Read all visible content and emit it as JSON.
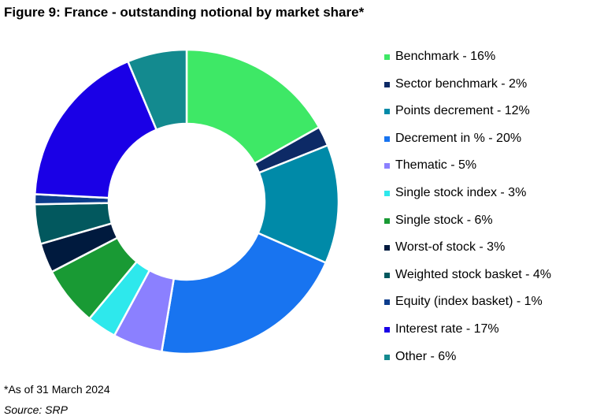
{
  "title": "Figure 9: France - outstanding notional by market share*",
  "footnote": "*As of 31 March 2024",
  "source": "Source: SRP",
  "chart_data": {
    "type": "pie",
    "donut": true,
    "legend_position": "right",
    "series": [
      {
        "name": "Benchmark",
        "label": "Benchmark - 16%",
        "value": 16,
        "color": "#3ee866"
      },
      {
        "name": "Sector benchmark",
        "label": "Sector benchmark - 2%",
        "value": 2,
        "color": "#0d2a66"
      },
      {
        "name": "Points decrement",
        "label": "Points decrement - 12%",
        "value": 12,
        "color": "#008aa8"
      },
      {
        "name": "Decrement in %",
        "label": "Decrement in % - 20%",
        "value": 20,
        "color": "#1874f0"
      },
      {
        "name": "Thematic",
        "label": "Thematic - 5%",
        "value": 5,
        "color": "#8b80ff"
      },
      {
        "name": "Single stock index",
        "label": "Single stock index - 3%",
        "value": 3,
        "color": "#2ee8ec"
      },
      {
        "name": "Single stock",
        "label": "Single stock - 6%",
        "value": 6,
        "color": "#199a34"
      },
      {
        "name": "Worst-of stock",
        "label": "Worst-of stock - 3%",
        "value": 3,
        "color": "#001a3e"
      },
      {
        "name": "Weighted stock basket",
        "label": "Weighted stock basket - 4%",
        "value": 4,
        "color": "#02585e"
      },
      {
        "name": "Equity (index basket)",
        "label": "Equity (index basket) - 1%",
        "value": 1,
        "color": "#0c3d8c"
      },
      {
        "name": "Interest rate",
        "label": "Interest rate - 17%",
        "value": 17,
        "color": "#1a00e6"
      },
      {
        "name": "Other",
        "label": "Other - 6%",
        "value": 6,
        "color": "#138a8f"
      }
    ]
  }
}
